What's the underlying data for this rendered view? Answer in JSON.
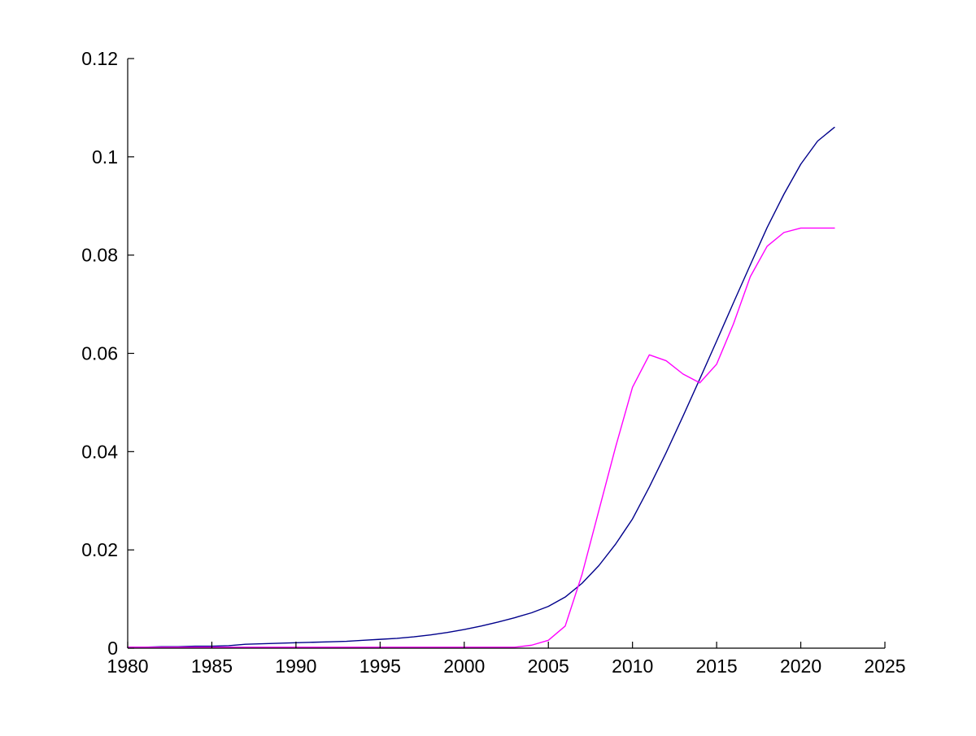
{
  "figure": {
    "background": "#ffffff",
    "axis_color": "#000000",
    "tick_label_color": "#000000"
  },
  "chart_data": {
    "type": "line",
    "title": "",
    "xlabel": "",
    "ylabel": "",
    "grid": false,
    "legend_position": "none",
    "xlim": [
      1980,
      2025
    ],
    "ylim": [
      0,
      0.12
    ],
    "x_ticks": [
      1980,
      1985,
      1990,
      1995,
      2000,
      2005,
      2010,
      2015,
      2020,
      2025
    ],
    "x_tick_labels": [
      "1980",
      "1985",
      "1990",
      "1995",
      "2000",
      "2005",
      "2010",
      "2015",
      "2020",
      "2025"
    ],
    "y_ticks": [
      0,
      0.02,
      0.04,
      0.06,
      0.08,
      0.1,
      0.12
    ],
    "y_tick_labels": [
      "0",
      "0.02",
      "0.04",
      "0.06",
      "0.08",
      "0.1",
      "0.12"
    ],
    "x": [
      1980,
      1981,
      1982,
      1983,
      1984,
      1985,
      1986,
      1987,
      1988,
      1989,
      1990,
      1991,
      1992,
      1993,
      1994,
      1995,
      1996,
      1997,
      1998,
      1999,
      2000,
      2001,
      2002,
      2003,
      2004,
      2005,
      2006,
      2007,
      2008,
      2009,
      2010,
      2011,
      2012,
      2013,
      2014,
      2015,
      2016,
      2017,
      2018,
      2019,
      2020,
      2021,
      2022
    ],
    "series": [
      {
        "name": "dark-blue-smooth-growth-curve",
        "color": "#00008B",
        "values": [
          0.0002,
          0.0002,
          0.0003,
          0.0003,
          0.0004,
          0.0004,
          0.0005,
          0.0008,
          0.0009,
          0.001,
          0.0011,
          0.0012,
          0.0013,
          0.0014,
          0.0016,
          0.0018,
          0.002,
          0.0023,
          0.0027,
          0.0032,
          0.0038,
          0.0045,
          0.0053,
          0.0062,
          0.0072,
          0.0085,
          0.0104,
          0.0132,
          0.0168,
          0.0212,
          0.0263,
          0.0328,
          0.0398,
          0.0472,
          0.0548,
          0.0625,
          0.0703,
          0.078,
          0.0856,
          0.0924,
          0.0985,
          0.1032,
          0.106
        ]
      },
      {
        "name": "magenta-curve",
        "color": "#FF00FF",
        "values": [
          0.0002,
          0.0002,
          0.0002,
          0.0002,
          0.0002,
          0.0002,
          0.0002,
          0.0002,
          0.0002,
          0.0002,
          0.0002,
          0.0002,
          0.0002,
          0.0002,
          0.0002,
          0.0002,
          0.0002,
          0.0002,
          0.0002,
          0.0002,
          0.0002,
          0.0002,
          0.0002,
          0.0002,
          0.0006,
          0.0016,
          0.0045,
          0.015,
          0.028,
          0.041,
          0.0531,
          0.0597,
          0.0585,
          0.0558,
          0.054,
          0.0578,
          0.066,
          0.0756,
          0.0818,
          0.0846,
          0.0855,
          0.0855,
          0.0855
        ]
      }
    ]
  }
}
